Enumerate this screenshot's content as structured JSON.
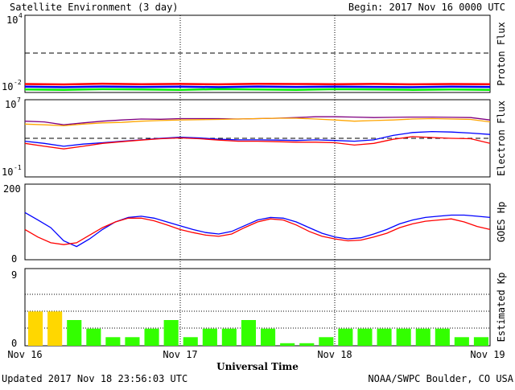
{
  "header": {
    "title": "Satellite Environment (3 day)",
    "begin": "Begin:  2017 Nov 16 0000 UTC"
  },
  "footer": {
    "updated": "Updated 2017 Nov 18 23:56:03 UTC",
    "credit": "NOAA/SWPC Boulder, CO USA"
  },
  "x_axis": {
    "label": "Universal Time",
    "ticks": [
      "Nov 16",
      "Nov 17",
      "Nov 18",
      "Nov 19"
    ]
  },
  "colors": {
    "red": "#ff0000",
    "blue": "#0000ff",
    "green": "#00ee00",
    "orange": "#ffa500",
    "purple": "#800080",
    "kp_green": "#33ff00",
    "kp_yellow": "#ffd700"
  },
  "chart_data": [
    {
      "type": "line",
      "ylabel": "Proton Flux",
      "y_scale": "log",
      "ylim": [
        0.01,
        10000
      ],
      "y_ticks": [
        "10",
        "10"
      ],
      "y_tick_exponents": [
        "4",
        "-2"
      ],
      "threshold": 10,
      "x": [
        0,
        6,
        12,
        18,
        24,
        30,
        36,
        42,
        48,
        54,
        60,
        66,
        72
      ],
      "series": [
        {
          "color": "red",
          "values": [
            0.045,
            0.042,
            0.048,
            0.044,
            0.046,
            0.043,
            0.047,
            0.045,
            0.044,
            0.046,
            0.043,
            0.045,
            0.044
          ]
        },
        {
          "color": "blue",
          "values": [
            0.028,
            0.026,
            0.029,
            0.027,
            0.028,
            0.026,
            0.029,
            0.027,
            0.028,
            0.027,
            0.026,
            0.028,
            0.027
          ]
        },
        {
          "color": "green",
          "values": [
            0.017,
            0.016,
            0.018,
            0.017,
            0.016,
            0.018,
            0.017,
            0.016,
            0.018,
            0.017,
            0.016,
            0.017,
            0.016
          ]
        }
      ]
    },
    {
      "type": "line",
      "ylabel": "Electron Flux",
      "y_scale": "log",
      "ylim": [
        0.1,
        10000000
      ],
      "y_ticks": [
        "10",
        "10"
      ],
      "y_tick_exponents": [
        "7",
        "-1"
      ],
      "threshold": 1000,
      "x": [
        0,
        3,
        6,
        9,
        12,
        15,
        18,
        21,
        24,
        27,
        30,
        33,
        36,
        39,
        42,
        45,
        48,
        51,
        54,
        57,
        60,
        63,
        66,
        69,
        72
      ],
      "series": [
        {
          "color": "purple",
          "values": [
            60000,
            50000,
            25000,
            40000,
            60000,
            80000,
            100000,
            95000,
            110000,
            110000,
            110000,
            100000,
            110000,
            120000,
            140000,
            170000,
            170000,
            160000,
            140000,
            150000,
            160000,
            160000,
            150000,
            140000,
            80000
          ]
        },
        {
          "color": "orange",
          "values": [
            30000,
            25000,
            20000,
            30000,
            40000,
            45000,
            60000,
            70000,
            80000,
            85000,
            90000,
            100000,
            110000,
            120000,
            120000,
            100000,
            80000,
            60000,
            70000,
            80000,
            100000,
            110000,
            100000,
            90000,
            50000
          ]
        },
        {
          "color": "blue",
          "values": [
            500,
            300,
            150,
            250,
            350,
            500,
            700,
            1000,
            1300,
            1100,
            800,
            700,
            700,
            650,
            600,
            700,
            600,
            500,
            700,
            2000,
            4000,
            5000,
            4500,
            3500,
            2500
          ]
        },
        {
          "color": "red",
          "values": [
            300,
            150,
            80,
            150,
            300,
            450,
            650,
            900,
            1100,
            900,
            650,
            500,
            500,
            450,
            400,
            400,
            350,
            200,
            300,
            800,
            1500,
            1200,
            1000,
            900,
            300
          ]
        }
      ]
    },
    {
      "type": "line",
      "ylabel": "GOES Hp",
      "ylim": [
        0,
        200
      ],
      "y_ticks": [
        "200",
        "0"
      ],
      "x": [
        0,
        2,
        4,
        6,
        8,
        10,
        12,
        14,
        16,
        18,
        20,
        22,
        24,
        26,
        28,
        30,
        32,
        34,
        36,
        38,
        40,
        42,
        44,
        46,
        48,
        50,
        52,
        54,
        56,
        58,
        60,
        62,
        64,
        66,
        68,
        70,
        72
      ],
      "series": [
        {
          "color": "blue",
          "values": [
            125,
            105,
            85,
            50,
            35,
            55,
            80,
            100,
            112,
            115,
            110,
            100,
            90,
            80,
            72,
            68,
            75,
            90,
            105,
            112,
            110,
            100,
            85,
            70,
            60,
            55,
            58,
            68,
            80,
            95,
            105,
            112,
            115,
            118,
            118,
            115,
            112
          ]
        },
        {
          "color": "red",
          "values": [
            80,
            60,
            45,
            40,
            45,
            65,
            85,
            100,
            110,
            110,
            103,
            92,
            80,
            72,
            65,
            62,
            68,
            85,
            100,
            108,
            105,
            92,
            75,
            62,
            55,
            50,
            52,
            60,
            70,
            85,
            95,
            102,
            105,
            108,
            100,
            88,
            80
          ]
        }
      ]
    },
    {
      "type": "bar",
      "ylabel": "Estimated Kp",
      "ylim": [
        0,
        9
      ],
      "y_ticks": [
        "9",
        "0"
      ],
      "x_interval_hours": 3,
      "values": [
        4,
        4,
        3,
        2,
        1,
        1,
        2,
        3,
        1,
        2,
        2,
        3,
        2,
        0.3,
        0.3,
        1,
        2,
        2,
        2,
        2,
        2,
        2,
        1,
        1
      ],
      "colors": [
        "kp_yellow",
        "kp_yellow",
        "kp_green",
        "kp_green",
        "kp_green",
        "kp_green",
        "kp_green",
        "kp_green",
        "kp_green",
        "kp_green",
        "kp_green",
        "kp_green",
        "kp_green",
        "kp_green",
        "kp_green",
        "kp_green",
        "kp_green",
        "kp_green",
        "kp_green",
        "kp_green",
        "kp_green",
        "kp_green",
        "kp_green",
        "kp_green"
      ]
    }
  ]
}
